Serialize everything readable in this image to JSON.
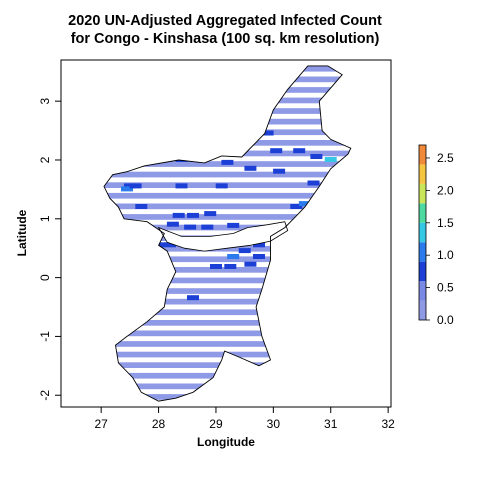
{
  "chart_data": {
    "type": "heatmap",
    "title_lines": [
      "2020 UN-Adjusted Aggregated Infected Count",
      "for Congo - Kinshasa (100 sq. km resolution)"
    ],
    "xlabel": "Longitude",
    "ylabel": "Latitude",
    "xlim": [
      26.3,
      32.05
    ],
    "ylim": [
      -2.2,
      3.7
    ],
    "x_ticks": [
      "27",
      "28",
      "29",
      "30",
      "31",
      "32"
    ],
    "y_ticks": [
      "-2",
      "-1",
      "0",
      "1",
      "2",
      "3"
    ],
    "legend": {
      "placement": "right",
      "ticks": [
        "0.0",
        "0.5",
        "1.0",
        "1.5",
        "2.0",
        "2.5"
      ],
      "range": [
        0,
        2.7
      ],
      "color_stops": [
        {
          "value": 0.0,
          "color": "#8f9ae6"
        },
        {
          "value": 0.3,
          "color": "#7a89e3"
        },
        {
          "value": 0.6,
          "color": "#1c3fd6"
        },
        {
          "value": 0.9,
          "color": "#2b7bec"
        },
        {
          "value": 1.2,
          "color": "#37c8e6"
        },
        {
          "value": 1.5,
          "color": "#4dd9a0"
        },
        {
          "value": 1.8,
          "color": "#c9e55a"
        },
        {
          "value": 2.1,
          "color": "#f5c542"
        },
        {
          "value": 2.4,
          "color": "#f08a3a"
        },
        {
          "value": 2.7,
          "color": "#e0463b"
        }
      ]
    },
    "region_outline": [
      [
        31.2,
        3.45
      ],
      [
        30.95,
        3.6
      ],
      [
        30.6,
        3.6
      ],
      [
        30.25,
        3.2
      ],
      [
        30.0,
        2.85
      ],
      [
        29.85,
        2.45
      ],
      [
        29.45,
        2.05
      ],
      [
        29.1,
        2.07
      ],
      [
        28.8,
        1.95
      ],
      [
        28.35,
        2.0
      ],
      [
        27.75,
        1.9
      ],
      [
        27.45,
        1.8
      ],
      [
        27.2,
        1.75
      ],
      [
        27.05,
        1.55
      ],
      [
        27.15,
        1.35
      ],
      [
        27.3,
        1.2
      ],
      [
        27.4,
        1.0
      ],
      [
        27.8,
        0.95
      ],
      [
        28.1,
        0.75
      ],
      [
        28.0,
        0.55
      ],
      [
        28.15,
        0.45
      ],
      [
        28.3,
        0.1
      ],
      [
        28.15,
        -0.2
      ],
      [
        28.1,
        -0.5
      ],
      [
        27.8,
        -0.75
      ],
      [
        27.45,
        -1.0
      ],
      [
        27.25,
        -1.15
      ],
      [
        27.3,
        -1.45
      ],
      [
        27.55,
        -1.7
      ],
      [
        27.7,
        -1.95
      ],
      [
        28.0,
        -2.1
      ],
      [
        28.3,
        -2.05
      ],
      [
        28.6,
        -1.95
      ],
      [
        28.95,
        -1.7
      ],
      [
        29.1,
        -1.4
      ],
      [
        29.15,
        -1.25
      ],
      [
        29.4,
        -1.35
      ],
      [
        29.75,
        -1.5
      ],
      [
        29.95,
        -1.4
      ],
      [
        29.8,
        -1.0
      ],
      [
        29.7,
        -0.5
      ],
      [
        29.8,
        -0.2
      ],
      [
        29.95,
        0.3
      ],
      [
        29.95,
        0.7
      ],
      [
        30.2,
        0.85
      ],
      [
        30.4,
        1.05
      ],
      [
        30.55,
        1.2
      ],
      [
        30.8,
        1.55
      ],
      [
        31.0,
        1.85
      ],
      [
        31.3,
        2.1
      ],
      [
        31.35,
        2.2
      ],
      [
        31.0,
        2.35
      ],
      [
        30.85,
        2.5
      ],
      [
        30.8,
        3.0
      ],
      [
        31.2,
        3.45
      ]
    ],
    "lake_outline": [
      [
        28.0,
        0.85
      ],
      [
        28.4,
        0.7
      ],
      [
        28.9,
        0.7
      ],
      [
        29.3,
        0.75
      ],
      [
        29.55,
        0.85
      ],
      [
        29.9,
        0.9
      ],
      [
        30.2,
        0.95
      ],
      [
        30.25,
        0.8
      ],
      [
        29.95,
        0.62
      ],
      [
        29.6,
        0.55
      ],
      [
        29.2,
        0.5
      ],
      [
        28.8,
        0.45
      ],
      [
        28.45,
        0.5
      ],
      [
        28.15,
        0.6
      ],
      [
        28.0,
        0.85
      ]
    ],
    "hotspots": [
      {
        "lon": 28.35,
        "lat": 1.05,
        "value": 0.65
      },
      {
        "lon": 28.6,
        "lat": 1.05,
        "value": 0.62
      },
      {
        "lon": 28.9,
        "lat": 1.08,
        "value": 0.66
      },
      {
        "lon": 28.25,
        "lat": 0.9,
        "value": 0.64
      },
      {
        "lon": 28.55,
        "lat": 0.85,
        "value": 0.7
      },
      {
        "lon": 28.85,
        "lat": 0.85,
        "value": 0.63
      },
      {
        "lon": 29.3,
        "lat": 0.88,
        "value": 0.62
      },
      {
        "lon": 29.9,
        "lat": 0.7,
        "value": 0.68
      },
      {
        "lon": 30.1,
        "lat": 0.75,
        "value": 0.9
      },
      {
        "lon": 29.5,
        "lat": 0.45,
        "value": 0.62
      },
      {
        "lon": 29.75,
        "lat": 0.35,
        "value": 0.66
      },
      {
        "lon": 29.3,
        "lat": 0.35,
        "value": 1.1
      },
      {
        "lon": 28.0,
        "lat": 0.55,
        "value": 0.64
      },
      {
        "lon": 29.0,
        "lat": 0.18,
        "value": 0.62
      },
      {
        "lon": 29.25,
        "lat": 0.18,
        "value": 0.66
      },
      {
        "lon": 29.6,
        "lat": 0.22,
        "value": 0.63
      },
      {
        "lon": 27.5,
        "lat": 1.55,
        "value": 0.62
      },
      {
        "lon": 28.4,
        "lat": 1.55,
        "value": 0.6
      },
      {
        "lon": 29.1,
        "lat": 1.55,
        "value": 0.61
      },
      {
        "lon": 27.45,
        "lat": 1.5,
        "value": 1.05
      },
      {
        "lon": 28.4,
        "lat": 2.0,
        "value": 0.62
      },
      {
        "lon": 29.2,
        "lat": 1.95,
        "value": 0.6
      },
      {
        "lon": 30.05,
        "lat": 2.15,
        "value": 0.62
      },
      {
        "lon": 30.45,
        "lat": 2.15,
        "value": 0.63
      },
      {
        "lon": 30.75,
        "lat": 2.05,
        "value": 0.61
      },
      {
        "lon": 31.0,
        "lat": 2.0,
        "value": 1.2
      },
      {
        "lon": 29.6,
        "lat": 1.85,
        "value": 0.6
      },
      {
        "lon": 30.1,
        "lat": 1.8,
        "value": 0.62
      },
      {
        "lon": 30.4,
        "lat": 1.2,
        "value": 0.62
      },
      {
        "lon": 30.7,
        "lat": 1.6,
        "value": 0.64
      },
      {
        "lon": 28.9,
        "lat": 2.3,
        "value": 0.6
      },
      {
        "lon": 27.7,
        "lat": 1.2,
        "value": 0.61
      },
      {
        "lon": 27.6,
        "lat": 1.55,
        "value": 0.63
      },
      {
        "lon": 29.9,
        "lat": 2.45,
        "value": 0.6
      },
      {
        "lon": 28.6,
        "lat": -0.35,
        "value": 0.6
      },
      {
        "lon": 28.2,
        "lat": 0.55,
        "value": 0.68
      },
      {
        "lon": 29.75,
        "lat": 0.55,
        "value": 0.72
      },
      {
        "lon": 30.55,
        "lat": 1.25,
        "value": 0.9
      }
    ]
  }
}
